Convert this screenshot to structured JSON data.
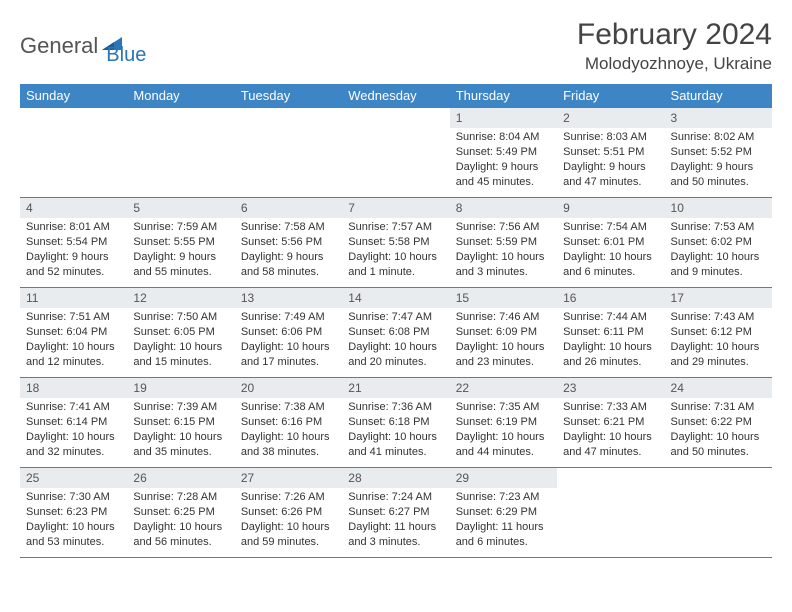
{
  "logo": {
    "word1": "General",
    "word2": "Blue"
  },
  "title": "February 2024",
  "location": "Molodyozhnoye, Ukraine",
  "colors": {
    "header_bg": "#3e85c6",
    "header_text": "#ffffff",
    "daynum_bg": "#e9ecef",
    "border": "#3e85c6",
    "logo_dark": "#555555",
    "logo_blue": "#2a74b8",
    "title_color": "#444444",
    "body_text": "#333333",
    "page_bg": "#ffffff"
  },
  "typography": {
    "title_fontsize": 30,
    "location_fontsize": 17,
    "header_fontsize": 13,
    "daynum_fontsize": 12,
    "cell_fontsize": 11
  },
  "weekdays": [
    "Sunday",
    "Monday",
    "Tuesday",
    "Wednesday",
    "Thursday",
    "Friday",
    "Saturday"
  ],
  "grid": [
    [
      null,
      null,
      null,
      null,
      {
        "n": "1",
        "sr": "Sunrise: 8:04 AM",
        "ss": "Sunset: 5:49 PM",
        "d1": "Daylight: 9 hours",
        "d2": "and 45 minutes."
      },
      {
        "n": "2",
        "sr": "Sunrise: 8:03 AM",
        "ss": "Sunset: 5:51 PM",
        "d1": "Daylight: 9 hours",
        "d2": "and 47 minutes."
      },
      {
        "n": "3",
        "sr": "Sunrise: 8:02 AM",
        "ss": "Sunset: 5:52 PM",
        "d1": "Daylight: 9 hours",
        "d2": "and 50 minutes."
      }
    ],
    [
      {
        "n": "4",
        "sr": "Sunrise: 8:01 AM",
        "ss": "Sunset: 5:54 PM",
        "d1": "Daylight: 9 hours",
        "d2": "and 52 minutes."
      },
      {
        "n": "5",
        "sr": "Sunrise: 7:59 AM",
        "ss": "Sunset: 5:55 PM",
        "d1": "Daylight: 9 hours",
        "d2": "and 55 minutes."
      },
      {
        "n": "6",
        "sr": "Sunrise: 7:58 AM",
        "ss": "Sunset: 5:56 PM",
        "d1": "Daylight: 9 hours",
        "d2": "and 58 minutes."
      },
      {
        "n": "7",
        "sr": "Sunrise: 7:57 AM",
        "ss": "Sunset: 5:58 PM",
        "d1": "Daylight: 10 hours",
        "d2": "and 1 minute."
      },
      {
        "n": "8",
        "sr": "Sunrise: 7:56 AM",
        "ss": "Sunset: 5:59 PM",
        "d1": "Daylight: 10 hours",
        "d2": "and 3 minutes."
      },
      {
        "n": "9",
        "sr": "Sunrise: 7:54 AM",
        "ss": "Sunset: 6:01 PM",
        "d1": "Daylight: 10 hours",
        "d2": "and 6 minutes."
      },
      {
        "n": "10",
        "sr": "Sunrise: 7:53 AM",
        "ss": "Sunset: 6:02 PM",
        "d1": "Daylight: 10 hours",
        "d2": "and 9 minutes."
      }
    ],
    [
      {
        "n": "11",
        "sr": "Sunrise: 7:51 AM",
        "ss": "Sunset: 6:04 PM",
        "d1": "Daylight: 10 hours",
        "d2": "and 12 minutes."
      },
      {
        "n": "12",
        "sr": "Sunrise: 7:50 AM",
        "ss": "Sunset: 6:05 PM",
        "d1": "Daylight: 10 hours",
        "d2": "and 15 minutes."
      },
      {
        "n": "13",
        "sr": "Sunrise: 7:49 AM",
        "ss": "Sunset: 6:06 PM",
        "d1": "Daylight: 10 hours",
        "d2": "and 17 minutes."
      },
      {
        "n": "14",
        "sr": "Sunrise: 7:47 AM",
        "ss": "Sunset: 6:08 PM",
        "d1": "Daylight: 10 hours",
        "d2": "and 20 minutes."
      },
      {
        "n": "15",
        "sr": "Sunrise: 7:46 AM",
        "ss": "Sunset: 6:09 PM",
        "d1": "Daylight: 10 hours",
        "d2": "and 23 minutes."
      },
      {
        "n": "16",
        "sr": "Sunrise: 7:44 AM",
        "ss": "Sunset: 6:11 PM",
        "d1": "Daylight: 10 hours",
        "d2": "and 26 minutes."
      },
      {
        "n": "17",
        "sr": "Sunrise: 7:43 AM",
        "ss": "Sunset: 6:12 PM",
        "d1": "Daylight: 10 hours",
        "d2": "and 29 minutes."
      }
    ],
    [
      {
        "n": "18",
        "sr": "Sunrise: 7:41 AM",
        "ss": "Sunset: 6:14 PM",
        "d1": "Daylight: 10 hours",
        "d2": "and 32 minutes."
      },
      {
        "n": "19",
        "sr": "Sunrise: 7:39 AM",
        "ss": "Sunset: 6:15 PM",
        "d1": "Daylight: 10 hours",
        "d2": "and 35 minutes."
      },
      {
        "n": "20",
        "sr": "Sunrise: 7:38 AM",
        "ss": "Sunset: 6:16 PM",
        "d1": "Daylight: 10 hours",
        "d2": "and 38 minutes."
      },
      {
        "n": "21",
        "sr": "Sunrise: 7:36 AM",
        "ss": "Sunset: 6:18 PM",
        "d1": "Daylight: 10 hours",
        "d2": "and 41 minutes."
      },
      {
        "n": "22",
        "sr": "Sunrise: 7:35 AM",
        "ss": "Sunset: 6:19 PM",
        "d1": "Daylight: 10 hours",
        "d2": "and 44 minutes."
      },
      {
        "n": "23",
        "sr": "Sunrise: 7:33 AM",
        "ss": "Sunset: 6:21 PM",
        "d1": "Daylight: 10 hours",
        "d2": "and 47 minutes."
      },
      {
        "n": "24",
        "sr": "Sunrise: 7:31 AM",
        "ss": "Sunset: 6:22 PM",
        "d1": "Daylight: 10 hours",
        "d2": "and 50 minutes."
      }
    ],
    [
      {
        "n": "25",
        "sr": "Sunrise: 7:30 AM",
        "ss": "Sunset: 6:23 PM",
        "d1": "Daylight: 10 hours",
        "d2": "and 53 minutes."
      },
      {
        "n": "26",
        "sr": "Sunrise: 7:28 AM",
        "ss": "Sunset: 6:25 PM",
        "d1": "Daylight: 10 hours",
        "d2": "and 56 minutes."
      },
      {
        "n": "27",
        "sr": "Sunrise: 7:26 AM",
        "ss": "Sunset: 6:26 PM",
        "d1": "Daylight: 10 hours",
        "d2": "and 59 minutes."
      },
      {
        "n": "28",
        "sr": "Sunrise: 7:24 AM",
        "ss": "Sunset: 6:27 PM",
        "d1": "Daylight: 11 hours",
        "d2": "and 3 minutes."
      },
      {
        "n": "29",
        "sr": "Sunrise: 7:23 AM",
        "ss": "Sunset: 6:29 PM",
        "d1": "Daylight: 11 hours",
        "d2": "and 6 minutes."
      },
      null,
      null
    ]
  ]
}
